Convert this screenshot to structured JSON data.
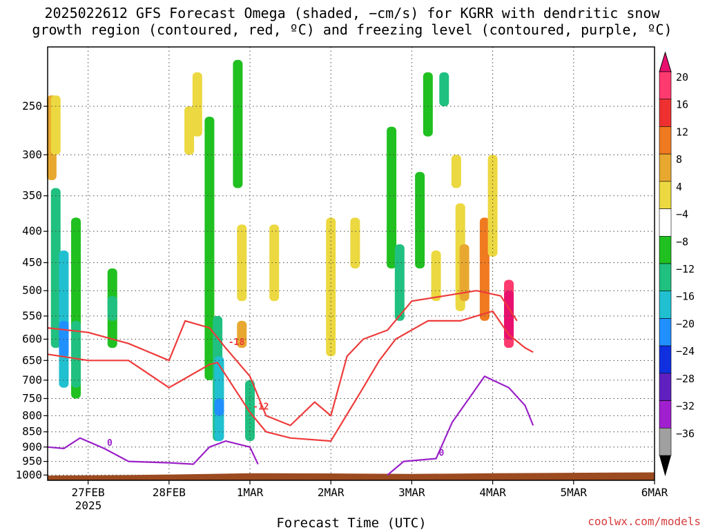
{
  "title_lines": [
    "2025022612 GFS Forecast Omega (shaded, −cm/s) for KGRR with dendritic snow",
    "growth region (contoured, red, ºC) and freezing level (contoured, purple, ºC)"
  ],
  "credit": "coolwx.com/models",
  "chart_data": {
    "type": "heatmap",
    "title": "2025022612 GFS Forecast Omega (shaded, −cm/s) for KGRR with dendritic snow growth region (contoured, red, ºC) and freezing level (contoured, purple, ºC)",
    "xlabel": "Forecast Time (UTC)",
    "ylabel": "",
    "x_ticks": [
      "27FEB",
      "28FEB",
      "1MAR",
      "2MAR",
      "3MAR",
      "4MAR",
      "5MAR",
      "6MAR"
    ],
    "x_year_label": "2025",
    "x_range_days": [
      -0.5,
      7.0
    ],
    "y_scale": "log-pressure",
    "y_range_hpa": [
      1020,
      200
    ],
    "y_ticks": [
      250,
      300,
      350,
      400,
      450,
      500,
      550,
      600,
      650,
      700,
      750,
      800,
      850,
      900,
      950,
      1000
    ],
    "grid": true,
    "surface_fill_color": "#9c4a20",
    "colorbar": {
      "labels": [
        "20",
        "16",
        "12",
        "8",
        "4",
        "−4",
        "−8",
        "−12",
        "−16",
        "−20",
        "−24",
        "−28",
        "−32",
        "−36"
      ],
      "colors": [
        "#ff3a6e",
        "#ee3030",
        "#f07a20",
        "#e8a830",
        "#ecd840",
        "#ffffff",
        "#20c020",
        "#20c080",
        "#20c0d0",
        "#2090ff",
        "#1030e0",
        "#6020c0",
        "#a020d0",
        "#a0a0a0"
      ],
      "over_color": "#e8106e",
      "under_color": "#000000"
    },
    "omega_cells": [
      {
        "t": -0.4,
        "p1": 340,
        "p2": 620,
        "v": -12
      },
      {
        "t": -0.3,
        "p1": 430,
        "p2": 720,
        "v": -16
      },
      {
        "t": -0.3,
        "p1": 560,
        "p2": 640,
        "v": -20
      },
      {
        "t": -0.15,
        "p1": 380,
        "p2": 750,
        "v": -8
      },
      {
        "t": -0.15,
        "p1": 560,
        "p2": 720,
        "v": -12
      },
      {
        "t": -0.45,
        "p1": 240,
        "p2": 330,
        "v": 8
      },
      {
        "t": -0.4,
        "p1": 240,
        "p2": 300,
        "v": 4
      },
      {
        "t": 0.3,
        "p1": 460,
        "p2": 620,
        "v": -8
      },
      {
        "t": 0.3,
        "p1": 510,
        "p2": 560,
        "v": -12
      },
      {
        "t": 1.25,
        "p1": 250,
        "p2": 300,
        "v": 4
      },
      {
        "t": 1.35,
        "p1": 220,
        "p2": 280,
        "v": 4
      },
      {
        "t": 1.5,
        "p1": 260,
        "p2": 700,
        "v": -8
      },
      {
        "t": 1.6,
        "p1": 550,
        "p2": 880,
        "v": -12
      },
      {
        "t": 1.62,
        "p1": 640,
        "p2": 880,
        "v": -16
      },
      {
        "t": 1.62,
        "p1": 750,
        "p2": 800,
        "v": -20
      },
      {
        "t": 1.85,
        "p1": 210,
        "p2": 340,
        "v": -8
      },
      {
        "t": 1.9,
        "p1": 390,
        "p2": 520,
        "v": 4
      },
      {
        "t": 1.9,
        "p1": 560,
        "p2": 620,
        "v": 8
      },
      {
        "t": 2.0,
        "p1": 700,
        "p2": 880,
        "v": -12
      },
      {
        "t": 2.3,
        "p1": 390,
        "p2": 520,
        "v": 4
      },
      {
        "t": 3.0,
        "p1": 380,
        "p2": 640,
        "v": 4
      },
      {
        "t": 3.3,
        "p1": 380,
        "p2": 460,
        "v": 4
      },
      {
        "t": 3.75,
        "p1": 270,
        "p2": 460,
        "v": -8
      },
      {
        "t": 3.85,
        "p1": 420,
        "p2": 560,
        "v": -12
      },
      {
        "t": 4.1,
        "p1": 320,
        "p2": 460,
        "v": -8
      },
      {
        "t": 4.2,
        "p1": 220,
        "p2": 280,
        "v": -8
      },
      {
        "t": 4.3,
        "p1": 430,
        "p2": 520,
        "v": 4
      },
      {
        "t": 4.4,
        "p1": 220,
        "p2": 250,
        "v": -12
      },
      {
        "t": 4.55,
        "p1": 300,
        "p2": 340,
        "v": 4
      },
      {
        "t": 4.6,
        "p1": 360,
        "p2": 540,
        "v": 4
      },
      {
        "t": 4.65,
        "p1": 420,
        "p2": 520,
        "v": 8
      },
      {
        "t": 4.9,
        "p1": 380,
        "p2": 560,
        "v": 12
      },
      {
        "t": 5.0,
        "p1": 300,
        "p2": 440,
        "v": 4
      },
      {
        "t": 5.2,
        "p1": 480,
        "p2": 620,
        "v": 16
      },
      {
        "t": 5.2,
        "p1": 500,
        "p2": 600,
        "v": 20
      }
    ],
    "dgz_contours": [
      {
        "level": -12,
        "label": "-12",
        "points": [
          [
            -0.5,
            635
          ],
          [
            0.0,
            650
          ],
          [
            0.5,
            650
          ],
          [
            1.0,
            720
          ],
          [
            1.5,
            660
          ],
          [
            1.6,
            655
          ],
          [
            2.0,
            790
          ],
          [
            2.2,
            850
          ],
          [
            2.5,
            870
          ],
          [
            3.0,
            880
          ],
          [
            3.4,
            720
          ],
          [
            3.6,
            650
          ],
          [
            3.8,
            600
          ],
          [
            4.2,
            560
          ],
          [
            4.6,
            560
          ],
          [
            5.0,
            540
          ],
          [
            5.2,
            590
          ],
          [
            5.4,
            620
          ],
          [
            5.5,
            630
          ]
        ]
      },
      {
        "level": -18,
        "label": "-18",
        "points": [
          [
            -0.5,
            575
          ],
          [
            0.0,
            585
          ],
          [
            0.5,
            610
          ],
          [
            1.0,
            650
          ],
          [
            1.2,
            560
          ],
          [
            1.5,
            575
          ],
          [
            1.7,
            620
          ],
          [
            2.0,
            690
          ],
          [
            2.2,
            800
          ],
          [
            2.5,
            830
          ],
          [
            2.8,
            760
          ],
          [
            3.0,
            800
          ],
          [
            3.2,
            640
          ],
          [
            3.4,
            600
          ],
          [
            3.7,
            580
          ],
          [
            4.0,
            520
          ],
          [
            4.4,
            510
          ],
          [
            4.8,
            500
          ],
          [
            5.1,
            510
          ],
          [
            5.3,
            560
          ]
        ]
      }
    ],
    "freezing_contour": {
      "level": 0,
      "label": "0",
      "points": [
        [
          -0.5,
          900
        ],
        [
          -0.3,
          905
        ],
        [
          -0.1,
          870
        ],
        [
          0.2,
          905
        ],
        [
          0.5,
          950
        ],
        [
          1.0,
          955
        ],
        [
          1.3,
          960
        ],
        [
          1.5,
          900
        ],
        [
          1.7,
          880
        ],
        [
          2.0,
          900
        ],
        [
          2.1,
          960
        ]
      ]
    },
    "freezing_contour_2": {
      "level": 0,
      "label": "0",
      "points": [
        [
          3.7,
          1000
        ],
        [
          3.9,
          950
        ],
        [
          4.3,
          940
        ],
        [
          4.5,
          820
        ],
        [
          4.9,
          690
        ],
        [
          5.2,
          720
        ],
        [
          5.4,
          770
        ],
        [
          5.5,
          830
        ]
      ]
    }
  }
}
